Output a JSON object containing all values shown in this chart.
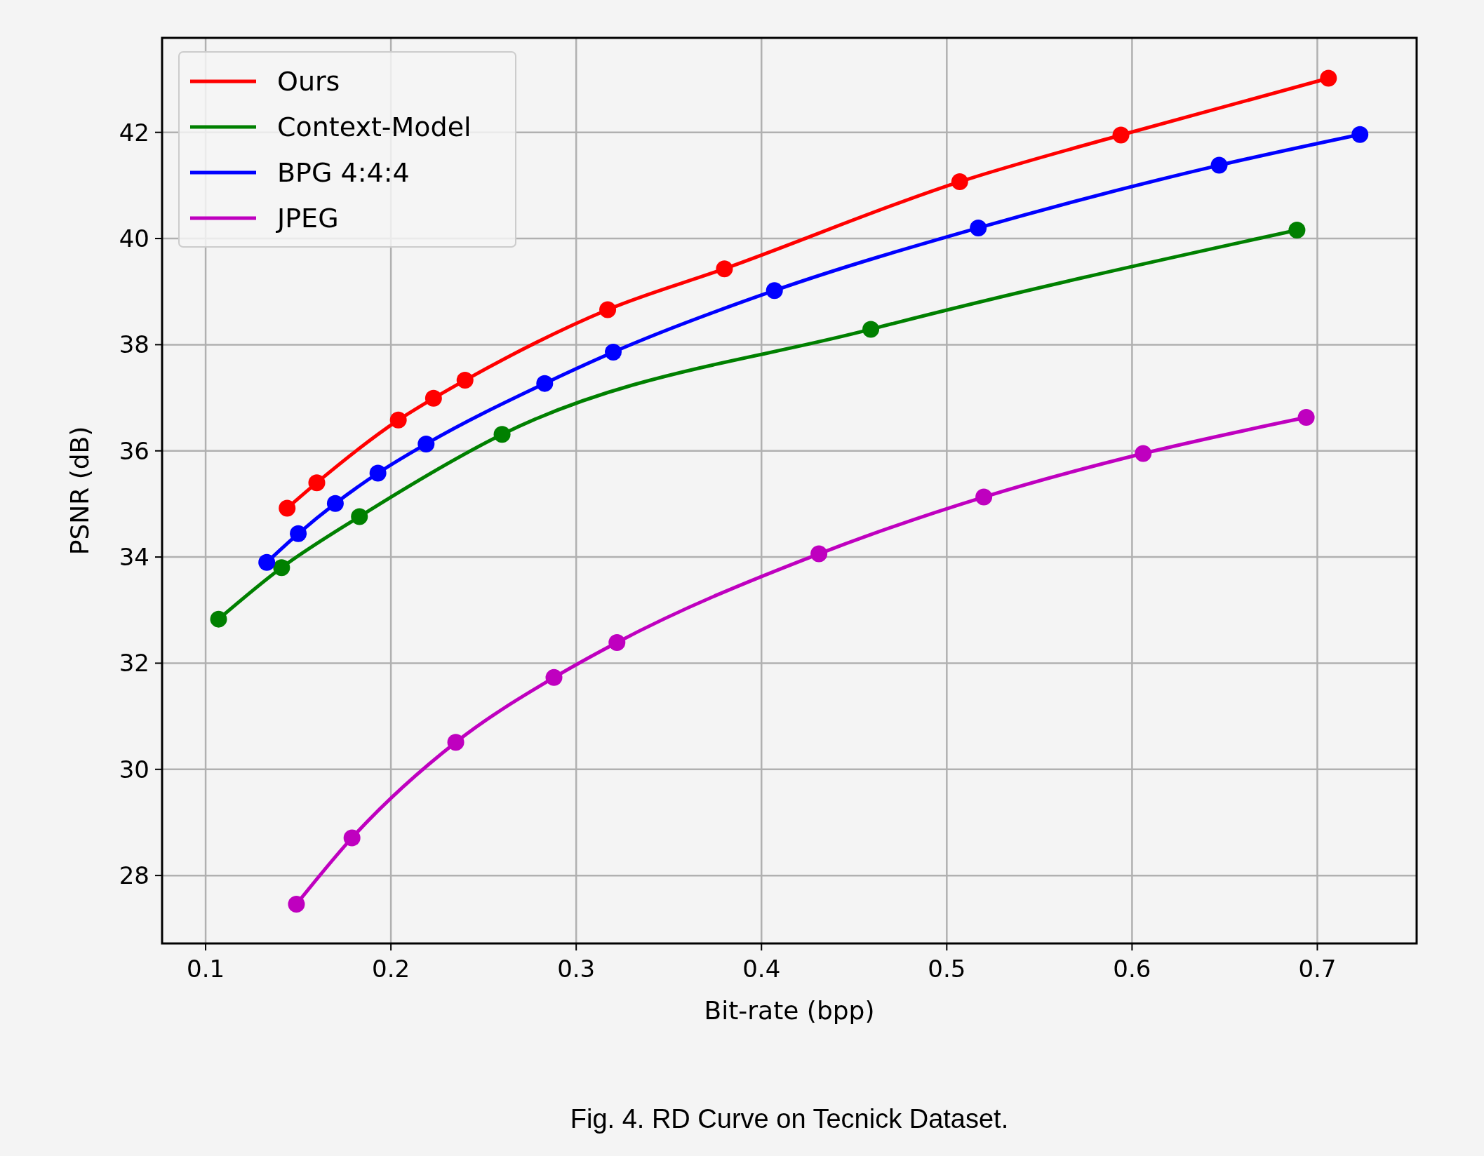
{
  "chart_data": {
    "type": "line",
    "xlabel": "Bit-rate (bpp)",
    "ylabel": "PSNR (dB)",
    "xlim": [
      0.0765,
      0.7536
    ],
    "ylim": [
      26.72,
      43.78
    ],
    "xticks": [
      0.1,
      0.2,
      0.3,
      0.4,
      0.5,
      0.6,
      0.7
    ],
    "yticks": [
      28,
      30,
      32,
      34,
      36,
      38,
      40,
      42
    ],
    "grid": true,
    "legend": "top left",
    "marker": "circle",
    "line_style": "solid",
    "annotations": [
      "Fig. 4. RD Curve on Tecnick Dataset."
    ],
    "series": [
      {
        "name": "Ours",
        "color": "#ff0000",
        "x": [
          0.144,
          0.16,
          0.204,
          0.223,
          0.24,
          0.317,
          0.38,
          0.507,
          0.594,
          0.706
        ],
        "values": [
          34.92,
          35.4,
          36.58,
          36.99,
          37.33,
          38.66,
          39.43,
          41.07,
          41.95,
          43.02
        ]
      },
      {
        "name": "Context-Model",
        "color": "#008000",
        "x": [
          0.107,
          0.141,
          0.183,
          0.26,
          0.459,
          0.689
        ],
        "values": [
          32.83,
          33.8,
          34.76,
          36.31,
          38.29,
          40.16
        ]
      },
      {
        "name": "BPG 4:4:4",
        "color": "#0000ff",
        "x": [
          0.133,
          0.15,
          0.17,
          0.193,
          0.219,
          0.283,
          0.32,
          0.407,
          0.517,
          0.647,
          0.723
        ],
        "values": [
          33.9,
          34.44,
          35.01,
          35.58,
          36.13,
          37.27,
          37.86,
          39.02,
          40.2,
          41.38,
          41.96
        ]
      },
      {
        "name": "JPEG",
        "color": "#bf00bf",
        "x": [
          0.149,
          0.179,
          0.235,
          0.288,
          0.322,
          0.431,
          0.52,
          0.606,
          0.694
        ],
        "values": [
          27.46,
          28.71,
          30.51,
          31.73,
          32.39,
          34.06,
          35.13,
          35.95,
          36.63
        ]
      }
    ]
  }
}
